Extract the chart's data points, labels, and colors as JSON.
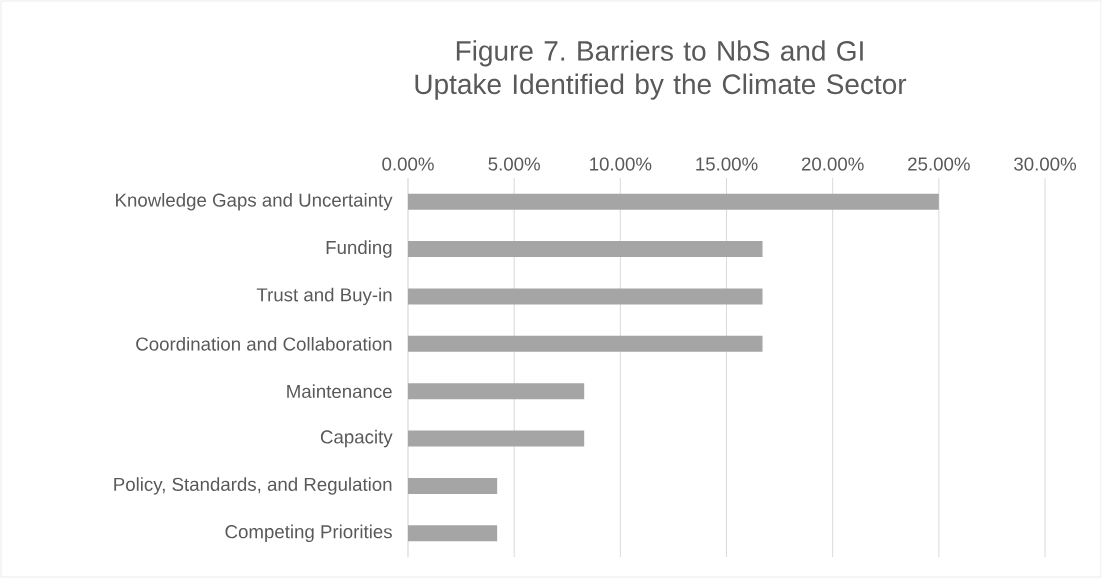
{
  "chart_data": {
    "type": "bar",
    "orientation": "horizontal",
    "title": "Figure 7. Barriers to NbS and GI Uptake Identified by the Climate Sector",
    "categories": [
      "Knowledge Gaps and Uncertainty",
      "Funding",
      "Trust and Buy-in",
      "Coordination and Collaboration",
      "Maintenance",
      "Capacity",
      "Policy, Standards, and Regulation",
      "Competing Priorities"
    ],
    "values": [
      25,
      16.7,
      16.7,
      16.7,
      8.3,
      8.3,
      4.2,
      4.2
    ],
    "color": "#a5a5a5",
    "xlim": [
      0,
      30
    ],
    "xticks": [
      {
        "value": 0,
        "label": "0.00%"
      },
      {
        "value": 5,
        "label": "5.00%"
      },
      {
        "value": 10,
        "label": "10.00%"
      },
      {
        "value": 15,
        "label": "15.00%"
      },
      {
        "value": 20,
        "label": "20.00%"
      },
      {
        "value": 25,
        "label": "25.00%"
      },
      {
        "value": 30,
        "label": "30.00%"
      }
    ],
    "grid": "x"
  }
}
